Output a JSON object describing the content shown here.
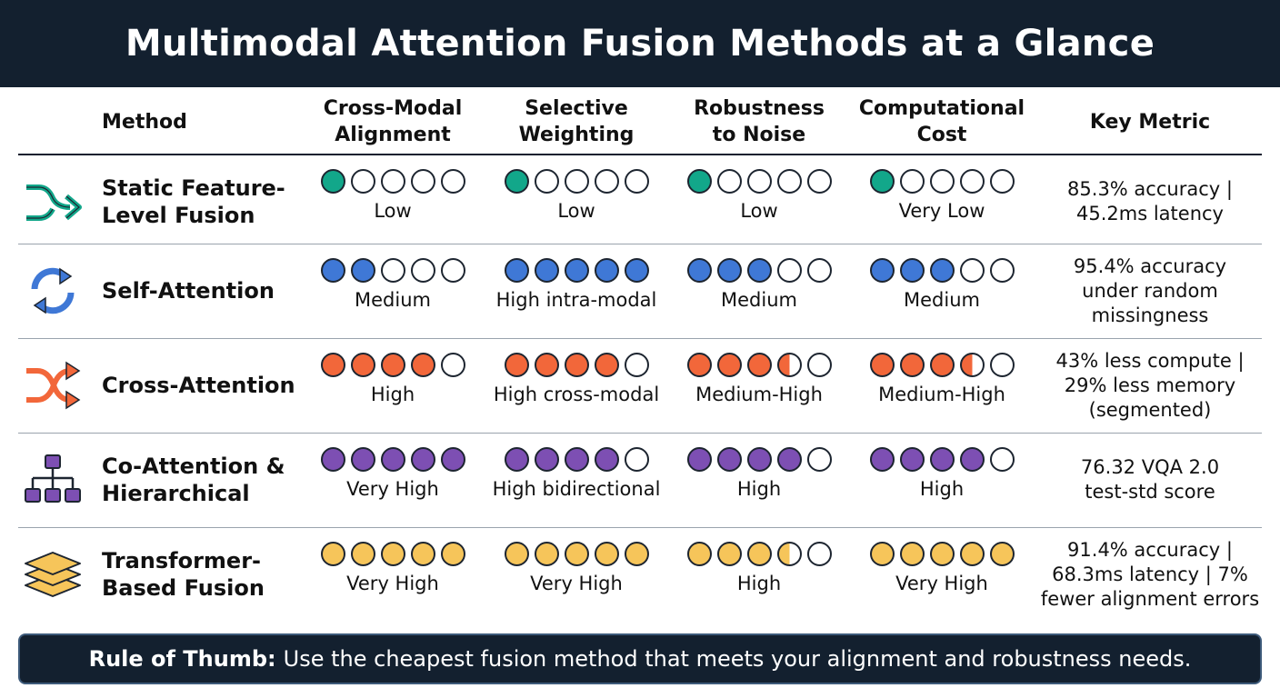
{
  "title": "Multimodal Attention Fusion Methods at a Glance",
  "headers": {
    "method": "Method",
    "alignment": "Cross-Modal\nAlignment",
    "weighting": "Selective\nWeighting",
    "robustness": "Robustness\nto Noise",
    "cost": "Computational\nCost",
    "metric": "Key Metric"
  },
  "rows": [
    {
      "name": "Static Feature-\nLevel Fusion",
      "icon": "merge-arrow-icon",
      "color": "#12a78a",
      "ratings": [
        {
          "filled": 1,
          "label": "Low"
        },
        {
          "filled": 1,
          "label": "Low"
        },
        {
          "filled": 1,
          "label": "Low"
        },
        {
          "filled": 1,
          "label": "Very Low"
        }
      ],
      "metric": "85.3% accuracy |\n45.2ms latency"
    },
    {
      "name": "Self-Attention",
      "icon": "cycle-arrows-icon",
      "color": "#3f78d6",
      "ratings": [
        {
          "filled": 2,
          "label": "Medium"
        },
        {
          "filled": 5,
          "label": "High intra-modal"
        },
        {
          "filled": 3,
          "label": "Medium"
        },
        {
          "filled": 3,
          "label": "Medium"
        }
      ],
      "metric": "95.4% accuracy\nunder random\nmissingness"
    },
    {
      "name": "Cross-Attention",
      "icon": "shuffle-arrows-icon",
      "color": "#f2673a",
      "ratings": [
        {
          "filled": 4,
          "label": "High"
        },
        {
          "filled": 4,
          "label": "High cross-modal"
        },
        {
          "filled": 3.5,
          "label": "Medium-High"
        },
        {
          "filled": 3.5,
          "label": "Medium-High"
        }
      ],
      "metric": "43% less compute |\n29% less memory\n(segmented)"
    },
    {
      "name": "Co-Attention &\nHierarchical",
      "icon": "hierarchy-icon",
      "color": "#7d4fb3",
      "ratings": [
        {
          "filled": 5,
          "label": "Very High"
        },
        {
          "filled": 4,
          "label": "High bidirectional"
        },
        {
          "filled": 4,
          "label": "High"
        },
        {
          "filled": 4,
          "label": "High"
        }
      ],
      "metric": "76.32 VQA 2.0\ntest-std score"
    },
    {
      "name": "Transformer-\nBased Fusion",
      "icon": "stacked-layers-icon",
      "color": "#f6c55a",
      "ratings": [
        {
          "filled": 5,
          "label": "Very High"
        },
        {
          "filled": 5,
          "label": "Very High"
        },
        {
          "filled": 3.5,
          "label": "High"
        },
        {
          "filled": 5,
          "label": "Very High"
        }
      ],
      "metric": "91.4% accuracy |\n68.3ms latency | 7%\nfewer alignment errors"
    }
  ],
  "rule": {
    "lead": "Rule of Thumb:",
    "text": "Use the cheapest fusion method that meets your alignment and robustness needs."
  }
}
